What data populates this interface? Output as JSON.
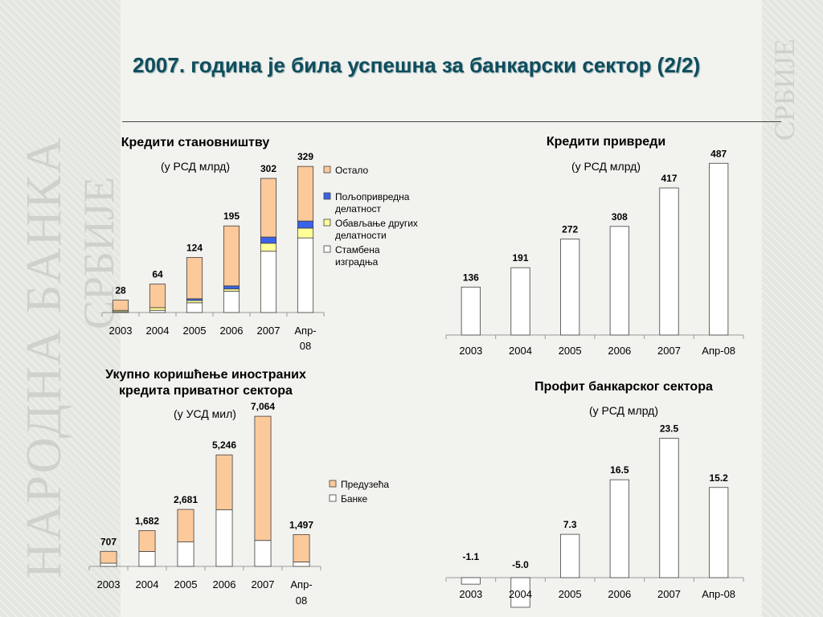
{
  "page": {
    "title": "2007. година је била успешна за банкарски сектор (2/2)",
    "watermark": [
      "НАРОДНА БАНКА",
      "СРБИЈЕ"
    ]
  },
  "colors": {
    "ostalo": "#fcc99b",
    "poljo": "#3b63e8",
    "obavljanje": "#ffff99",
    "stambena": "#ffffff",
    "preduzeca": "#fcc99b",
    "banke": "#ffffff",
    "bar": "#ffffff",
    "outline": "#404040",
    "title": "#0f4d5c"
  },
  "chart_data": [
    {
      "id": "households",
      "type": "bar",
      "stacked": true,
      "title": "Кредити становништву",
      "subtitle": "(у РСД млрд)",
      "categories": [
        "2003",
        "2004",
        "2005",
        "2006",
        "2007",
        "Апр-08"
      ],
      "totals": [
        "28",
        "64",
        "124",
        "195",
        "302",
        "329"
      ],
      "series": [
        {
          "name": "Стамбена изградња",
          "values": [
            2,
            5,
            22,
            48,
            138,
            168
          ]
        },
        {
          "name": "Обављање других делатности",
          "values": [
            3,
            6,
            5,
            5,
            18,
            22
          ]
        },
        {
          "name": "Пољопривредна делатност",
          "values": [
            0,
            0,
            4,
            7,
            14,
            16
          ]
        },
        {
          "name": "Остало",
          "values": [
            23,
            53,
            93,
            135,
            132,
            123
          ]
        }
      ],
      "legend": "right",
      "ylim": [
        0,
        360
      ]
    },
    {
      "id": "enterprises",
      "type": "bar",
      "title": "Кредити привреди",
      "subtitle": "(у РСД млрд)",
      "categories": [
        "2003",
        "2004",
        "2005",
        "2006",
        "2007",
        "Апр-08"
      ],
      "values": [
        136,
        191,
        272,
        308,
        417,
        487
      ],
      "labels": [
        "136",
        "191",
        "272",
        "308",
        "417",
        "487"
      ],
      "ylim": [
        0,
        540
      ]
    },
    {
      "id": "foreign",
      "type": "bar",
      "stacked": true,
      "title": "Укупно коришћење иностраних кредита приватног сектора",
      "title_lines": [
        "Укупно коришћење иностраних",
        "кредита приватног сектора"
      ],
      "subtitle": "(у УСД мил)",
      "categories": [
        "2003",
        "2004",
        "2005",
        "2006",
        "2007",
        "Апр-08"
      ],
      "totals": [
        "707",
        "1,682",
        "2,681",
        "5,246",
        "7,064",
        "1,497"
      ],
      "series": [
        {
          "name": "Банке",
          "values": [
            150,
            700,
            1150,
            2660,
            1220,
            210
          ]
        },
        {
          "name": "Предузећа",
          "values": [
            557,
            982,
            1531,
            2586,
            5844,
            1287
          ]
        }
      ],
      "legend": "right",
      "ylim": [
        0,
        7900
      ]
    },
    {
      "id": "profit",
      "type": "bar",
      "title": "Профит банкарског сектора",
      "subtitle": "(у РСД млрд)",
      "categories": [
        "2003",
        "2004",
        "2005",
        "2006",
        "2007",
        "Апр-08"
      ],
      "values": [
        -1.1,
        -5.0,
        7.3,
        16.5,
        23.5,
        15.2
      ],
      "labels": [
        "-1.1",
        "-5.0",
        "7.3",
        "16.5",
        "23.5",
        "15.2"
      ],
      "ylim": [
        -5.0,
        26
      ]
    }
  ]
}
